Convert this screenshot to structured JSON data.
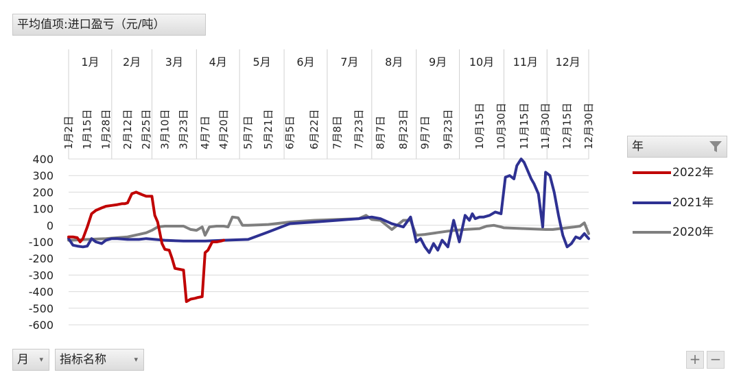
{
  "pivot": {
    "value_field": "平均值项:进口盈亏（元/吨）",
    "row_fields": [
      "月",
      "指标名称"
    ],
    "legend_title": "年",
    "zoom_in": "+",
    "zoom_out": "−"
  },
  "colors": {
    "2022年": "#c00000",
    "2021年": "#2e3192",
    "2020年": "#7f7f7f"
  },
  "chart_data": {
    "type": "line",
    "title": "",
    "months": [
      "1月",
      "2月",
      "3月",
      "4月",
      "5月",
      "6月",
      "7月",
      "8月",
      "9月",
      "10月",
      "11月",
      "12月"
    ],
    "date_ticks": [
      "1月2日",
      "1月15日",
      "1月28日",
      "2月12日",
      "2月25日",
      "3月10日",
      "3月23日",
      "4月7日",
      "4月20日",
      "5月7日",
      "5月21日",
      "6月5日",
      "6月22日",
      "7月8日",
      "7月23日",
      "8月7日",
      "8月23日",
      "9月7日",
      "9月23日",
      "10月15日",
      "10月30日",
      "11月15日",
      "11月30日",
      "12月15日",
      "12月30日"
    ],
    "ylim": [
      -600,
      400
    ],
    "yticks": [
      400,
      300,
      200,
      100,
      0,
      -100,
      -200,
      -300,
      -400,
      -500,
      -600
    ],
    "grid": true,
    "legend_position": "right",
    "series": [
      {
        "name": "2022年",
        "x": [
          "1月2日",
          "1月5日",
          "1月8日",
          "1月10日",
          "1月12日",
          "1月15日",
          "1月18日",
          "1月21日",
          "1月25日",
          "1月28日",
          "2月1日",
          "2月5日",
          "2月8日",
          "2月10日",
          "2月12日",
          "2月15日",
          "2月18日",
          "2月22日",
          "2月25日",
          "3月1日",
          "3月3日",
          "3月5日",
          "3月8日",
          "3月10日",
          "3月13日",
          "3月15日",
          "3月17日",
          "3月20日",
          "3月23日",
          "3月25日",
          "3月28日",
          "3月31日",
          "4月2日",
          "4月5日",
          "4月7日",
          "4月9日",
          "4月12日",
          "4月15日",
          "4月18日",
          "4月20日"
        ],
        "y": [
          -70,
          -70,
          -75,
          -100,
          -80,
          -10,
          70,
          90,
          105,
          115,
          120,
          125,
          130,
          130,
          135,
          190,
          200,
          185,
          175,
          175,
          60,
          20,
          -110,
          -145,
          -150,
          -200,
          -260,
          -265,
          -270,
          -460,
          -445,
          -440,
          -435,
          -430,
          -165,
          -150,
          -100,
          -100,
          -95,
          -90
        ]
      },
      {
        "name": "2021年",
        "x": [
          "1月2日",
          "1月5日",
          "1月8日",
          "1月12日",
          "1月15日",
          "1月18日",
          "1月21日",
          "1月25日",
          "1月28日",
          "2月1日",
          "2月5日",
          "2月12日",
          "2月20日",
          "2月25日",
          "3月10日",
          "3月23日",
          "4月7日",
          "4月20日",
          "5月7日",
          "5月21日",
          "6月5日",
          "6月22日",
          "7月8日",
          "7月23日",
          "8月1日",
          "8月7日",
          "8月15日",
          "8月23日",
          "8月28日",
          "9月1日",
          "9月4日",
          "9月7日",
          "9月10日",
          "9月13日",
          "9月16日",
          "9月19日",
          "9月23日",
          "9月27日",
          "10月1日",
          "10月5日",
          "10月8日",
          "10月10日",
          "10月12日",
          "10月15日",
          "10月18日",
          "10月22日",
          "10月26日",
          "10月30日",
          "11月2日",
          "11月5日",
          "11月8日",
          "11月10日",
          "11月13日",
          "11月15日",
          "11月17日",
          "11月20日",
          "11月22日",
          "11月25日",
          "11月28日",
          "11月30日",
          "12月3日",
          "12月6日",
          "12月9日",
          "12月12日",
          "12月15日",
          "12月18日",
          "12月21日",
          "12月24日",
          "12月27日",
          "12月30日"
        ],
        "y": [
          -80,
          -120,
          -125,
          -130,
          -125,
          -80,
          -100,
          -110,
          -90,
          -80,
          -80,
          -85,
          -85,
          -80,
          -90,
          -95,
          -95,
          -90,
          -85,
          -40,
          10,
          20,
          30,
          40,
          50,
          40,
          10,
          -10,
          50,
          -100,
          -80,
          -130,
          -165,
          -110,
          -150,
          -90,
          -130,
          30,
          -100,
          60,
          30,
          70,
          40,
          50,
          50,
          60,
          80,
          70,
          290,
          300,
          280,
          360,
          400,
          380,
          340,
          280,
          250,
          190,
          -10,
          320,
          300,
          200,
          60,
          -60,
          -130,
          -110,
          -70,
          -80,
          -50,
          -80
        ]
      },
      {
        "name": "2020年",
        "x": [
          "1月2日",
          "1月15日",
          "1月28日",
          "2月5日",
          "2月12日",
          "2月20日",
          "2月25日",
          "3月1日",
          "3月5日",
          "3月10日",
          "3月23日",
          "3月28日",
          "4月1日",
          "4月5日",
          "4月7日",
          "4月10日",
          "4月15日",
          "4月20日",
          "4月23日",
          "4月26日",
          "4月30日",
          "5月3日",
          "5月7日",
          "5月21日",
          "6月5日",
          "6月22日",
          "7月8日",
          "7月23日",
          "7月28日",
          "8月1日",
          "8月7日",
          "8月15日",
          "8月23日",
          "8月28日",
          "9月1日",
          "9月7日",
          "9月15日",
          "9月23日",
          "9月28日",
          "10月5日",
          "10月15日",
          "10月20日",
          "10月25日",
          "10月30日",
          "11月1日",
          "11月15日",
          "11月30日",
          "12月5日",
          "12月10日",
          "12月15日",
          "12月20日",
          "12月24日",
          "12月27日",
          "12月30日"
        ],
        "y": [
          -90,
          -85,
          -80,
          -75,
          -70,
          -55,
          -45,
          -30,
          -10,
          -5,
          -5,
          -25,
          -30,
          -10,
          -60,
          -10,
          -5,
          -5,
          -10,
          50,
          45,
          0,
          0,
          5,
          20,
          30,
          35,
          40,
          60,
          35,
          30,
          -25,
          30,
          30,
          -60,
          -55,
          -45,
          -35,
          -30,
          -25,
          -20,
          -5,
          0,
          -10,
          -15,
          -20,
          -25,
          -25,
          -20,
          -15,
          -10,
          -5,
          15,
          -50
        ]
      }
    ]
  }
}
